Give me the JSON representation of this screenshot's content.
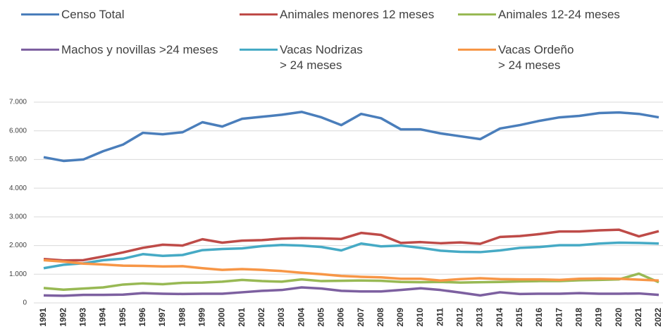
{
  "chart_data": {
    "type": "line",
    "x": [
      1991,
      1992,
      1993,
      1994,
      1995,
      1996,
      1997,
      1998,
      1999,
      2000,
      2001,
      2002,
      2003,
      2004,
      2005,
      2006,
      2007,
      2008,
      2009,
      2010,
      2011,
      2012,
      2013,
      2014,
      2015,
      2016,
      2017,
      2018,
      2019,
      2020,
      2021,
      2022
    ],
    "series": [
      {
        "name": "Censo Total",
        "color": "#4a7ebb",
        "values": [
          5080,
          4950,
          5000,
          5290,
          5520,
          5930,
          5880,
          5950,
          6300,
          6150,
          6420,
          6490,
          6560,
          6660,
          6470,
          6200,
          6590,
          6440,
          6050,
          6050,
          5910,
          5810,
          5710,
          6080,
          6200,
          6350,
          6470,
          6520,
          6620,
          6640,
          6590,
          6470
        ]
      },
      {
        "name": "Animales menores 12 meses",
        "color": "#be4b48",
        "values": [
          1530,
          1480,
          1490,
          1620,
          1760,
          1920,
          2030,
          2000,
          2220,
          2100,
          2170,
          2190,
          2240,
          2260,
          2250,
          2230,
          2440,
          2370,
          2090,
          2120,
          2080,
          2110,
          2060,
          2300,
          2330,
          2400,
          2490,
          2490,
          2530,
          2550,
          2320,
          2500
        ]
      },
      {
        "name": "Animales 12-24 meses",
        "color": "#98b954",
        "values": [
          520,
          460,
          500,
          540,
          640,
          680,
          650,
          700,
          710,
          740,
          800,
          760,
          740,
          820,
          760,
          770,
          780,
          770,
          730,
          720,
          730,
          710,
          720,
          730,
          750,
          760,
          760,
          790,
          800,
          820,
          1020,
          720
        ]
      },
      {
        "name": "Machos y novillas >24 meses",
        "color": "#7d60a0",
        "values": [
          260,
          250,
          280,
          280,
          290,
          340,
          320,
          310,
          320,
          320,
          370,
          420,
          450,
          540,
          500,
          420,
          400,
          400,
          450,
          510,
          450,
          360,
          260,
          370,
          310,
          320,
          320,
          340,
          320,
          320,
          330,
          280
        ]
      },
      {
        "name": "Vacas Nodrizas\n> 24 meses",
        "color": "#46aac5",
        "values": [
          1210,
          1330,
          1380,
          1490,
          1540,
          1700,
          1640,
          1670,
          1840,
          1880,
          1900,
          1980,
          2020,
          2000,
          1950,
          1830,
          2070,
          1970,
          2000,
          1920,
          1820,
          1780,
          1770,
          1830,
          1920,
          1950,
          2010,
          2010,
          2070,
          2100,
          2090,
          2070
        ]
      },
      {
        "name": "Vacas Ordeño\n> 24 meses",
        "color": "#f79646",
        "values": [
          1490,
          1440,
          1370,
          1340,
          1300,
          1290,
          1270,
          1280,
          1210,
          1150,
          1180,
          1150,
          1110,
          1050,
          1000,
          940,
          910,
          890,
          840,
          840,
          780,
          830,
          860,
          830,
          820,
          820,
          800,
          840,
          850,
          840,
          810,
          780
        ]
      }
    ],
    "ylim": [
      0,
      7000
    ],
    "yticks": [
      0,
      {
        "value": 1000,
        "label": "1.000"
      },
      {
        "value": 2000,
        "label": "2.000"
      },
      {
        "value": 3000,
        "label": "3.000"
      },
      {
        "value": 4000,
        "label": "4.000"
      },
      {
        "value": 5000,
        "label": "5.000"
      },
      {
        "value": 6000,
        "label": "6.000"
      },
      {
        "value": 7000,
        "label": "7.000"
      }
    ],
    "grid": true,
    "legend": "top"
  }
}
